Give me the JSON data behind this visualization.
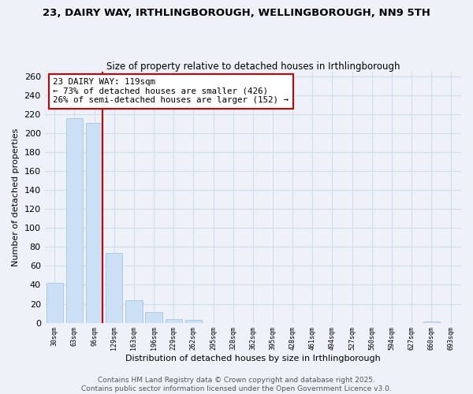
{
  "title": "23, DAIRY WAY, IRTHLINGBOROUGH, WELLINGBOROUGH, NN9 5TH",
  "subtitle": "Size of property relative to detached houses in Irthlingborough",
  "xlabel": "Distribution of detached houses by size in Irthlingborough",
  "ylabel": "Number of detached properties",
  "bar_values": [
    42,
    216,
    211,
    74,
    24,
    11,
    4,
    3,
    0,
    0,
    0,
    0,
    0,
    0,
    0,
    0,
    0,
    0,
    0,
    1,
    0
  ],
  "bar_labels": [
    "30sqm",
    "63sqm",
    "96sqm",
    "129sqm",
    "163sqm",
    "196sqm",
    "229sqm",
    "262sqm",
    "295sqm",
    "328sqm",
    "362sqm",
    "395sqm",
    "428sqm",
    "461sqm",
    "494sqm",
    "527sqm",
    "560sqm",
    "594sqm",
    "627sqm",
    "660sqm",
    "693sqm"
  ],
  "bar_color": "#cce0f5",
  "bar_edge_color": "#aac4e0",
  "grid_color": "#d0dcea",
  "background_color": "#eef2f8",
  "property_line_color": "#cc0000",
  "annotation_text": "23 DAIRY WAY: 119sqm\n← 73% of detached houses are smaller (426)\n26% of semi-detached houses are larger (152) →",
  "annotation_box_color": "#ffffff",
  "annotation_box_edge_color": "#cc0000",
  "ylim": [
    0,
    265
  ],
  "yticks": [
    0,
    20,
    40,
    60,
    80,
    100,
    120,
    140,
    160,
    180,
    200,
    220,
    240,
    260
  ],
  "footer_line1": "Contains HM Land Registry data © Crown copyright and database right 2025.",
  "footer_line2": "Contains public sector information licensed under the Open Government Licence v3.0.",
  "title_fontsize": 9.5,
  "subtitle_fontsize": 8.5,
  "annotation_fontsize": 7.8,
  "footer_fontsize": 6.5,
  "ylabel_fontsize": 8,
  "xlabel_fontsize": 8,
  "ytick_fontsize": 8,
  "xtick_fontsize": 6
}
